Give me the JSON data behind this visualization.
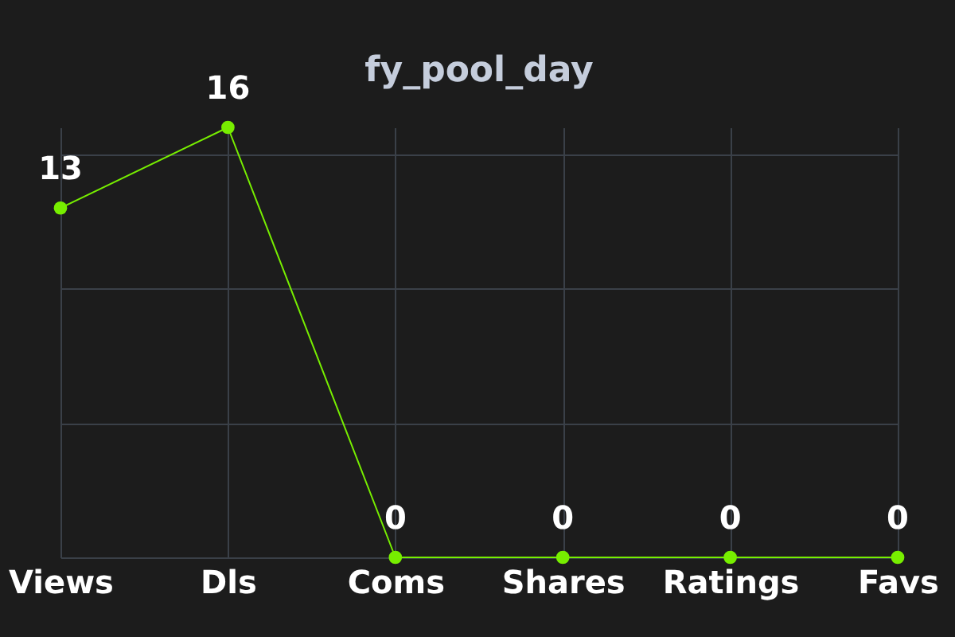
{
  "chart_data": {
    "type": "line",
    "title": "fy_pool_day",
    "categories": [
      "Views",
      "Dls",
      "Coms",
      "Shares",
      "Ratings",
      "Favs"
    ],
    "series": [
      {
        "color": "#77ee00",
        "values": [
          13,
          16,
          0,
          0,
          0,
          0
        ]
      }
    ],
    "data_labels": true,
    "grid": true,
    "marker": "circle",
    "line_style": "solid",
    "tick_labels": "x"
  }
}
